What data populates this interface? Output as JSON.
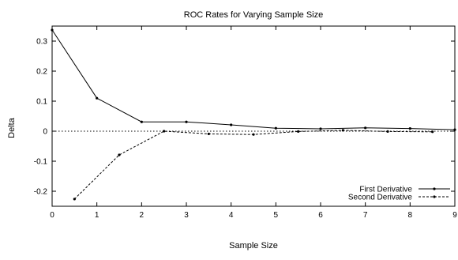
{
  "chart_data": {
    "type": "line",
    "title": "ROC Rates for Varying Sample Size",
    "xlabel": "Sample Size",
    "ylabel": "Delta",
    "xlim": [
      0,
      9
    ],
    "ylim": [
      -0.25,
      0.35
    ],
    "xticks": [
      0,
      1,
      2,
      3,
      4,
      5,
      6,
      7,
      8,
      9
    ],
    "yticks": [
      -0.2,
      -0.1,
      0,
      0.1,
      0.2,
      0.3
    ],
    "ytick_labels": [
      "-0.2",
      "-0.1",
      "0",
      "0.1",
      "0.2",
      "0.3"
    ],
    "xtick_labels": [
      "0",
      "1",
      "2",
      "3",
      "4",
      "5",
      "6",
      "7",
      "8",
      "9"
    ],
    "grid": false,
    "legend_position": "bottom-right",
    "zero_line": true,
    "series": [
      {
        "name": "First Derivative",
        "style": "solid",
        "marker": "dot",
        "color": "#000000",
        "x": [
          0,
          1,
          2,
          3,
          4,
          5,
          6,
          7,
          8,
          9
        ],
        "y": [
          0.337,
          0.11,
          0.031,
          0.031,
          0.021,
          0.01,
          0.008,
          0.011,
          0.009,
          0.005
        ]
      },
      {
        "name": "Second Derivative",
        "style": "dashed",
        "marker": "dot",
        "color": "#000000",
        "x": [
          0.5,
          1.5,
          2.5,
          3.5,
          4.5,
          5.5,
          6.5,
          7.5,
          8.5
        ],
        "y": [
          -0.226,
          -0.079,
          0.0,
          -0.009,
          -0.011,
          -0.001,
          0.003,
          -0.001,
          -0.002
        ]
      }
    ]
  }
}
